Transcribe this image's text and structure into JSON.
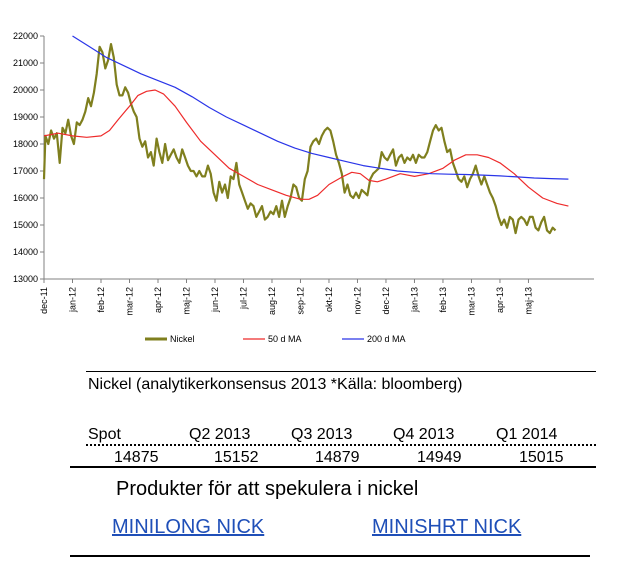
{
  "chart_data": {
    "type": "line",
    "ylim": [
      13000,
      22000
    ],
    "yticks": [
      13000,
      14000,
      15000,
      16000,
      17000,
      18000,
      19000,
      20000,
      21000,
      22000
    ],
    "xticks": [
      "dec-11",
      "jan-12",
      "feb-12",
      "mar-12",
      "apr-12",
      "maj-12",
      "jun-12",
      "jul-12",
      "aug-12",
      "sep-12",
      "okt-12",
      "nov-12",
      "dec-12",
      "jan-13",
      "feb-13",
      "mar-13",
      "apr-13",
      "maj-13"
    ],
    "x_range": [
      0,
      19.3
    ],
    "grid": false,
    "legend_position": "bottom",
    "series": [
      {
        "name": "Nickel",
        "color": "#7f7f1e",
        "points": [
          [
            0.0,
            16700
          ],
          [
            0.05,
            18300
          ],
          [
            0.15,
            18000
          ],
          [
            0.25,
            18500
          ],
          [
            0.35,
            18200
          ],
          [
            0.45,
            18400
          ],
          [
            0.55,
            17300
          ],
          [
            0.65,
            18600
          ],
          [
            0.75,
            18400
          ],
          [
            0.85,
            18900
          ],
          [
            0.95,
            18300
          ],
          [
            1.05,
            18000
          ],
          [
            1.15,
            18800
          ],
          [
            1.25,
            18700
          ],
          [
            1.35,
            18900
          ],
          [
            1.45,
            19200
          ],
          [
            1.55,
            19700
          ],
          [
            1.65,
            19400
          ],
          [
            1.75,
            19900
          ],
          [
            1.85,
            20600
          ],
          [
            1.95,
            21600
          ],
          [
            2.05,
            21400
          ],
          [
            2.15,
            20800
          ],
          [
            2.25,
            21100
          ],
          [
            2.35,
            21700
          ],
          [
            2.45,
            21200
          ],
          [
            2.55,
            20200
          ],
          [
            2.65,
            19800
          ],
          [
            2.75,
            19800
          ],
          [
            2.85,
            20100
          ],
          [
            2.95,
            19900
          ],
          [
            3.05,
            19500
          ],
          [
            3.15,
            19200
          ],
          [
            3.25,
            19000
          ],
          [
            3.35,
            18200
          ],
          [
            3.45,
            17900
          ],
          [
            3.55,
            18100
          ],
          [
            3.65,
            17500
          ],
          [
            3.75,
            17700
          ],
          [
            3.85,
            17200
          ],
          [
            3.95,
            18200
          ],
          [
            4.05,
            17700
          ],
          [
            4.15,
            17300
          ],
          [
            4.25,
            18000
          ],
          [
            4.35,
            17400
          ],
          [
            4.45,
            17600
          ],
          [
            4.55,
            17800
          ],
          [
            4.65,
            17500
          ],
          [
            4.75,
            17300
          ],
          [
            4.85,
            17800
          ],
          [
            4.95,
            17500
          ],
          [
            5.05,
            17200
          ],
          [
            5.15,
            17000
          ],
          [
            5.25,
            17000
          ],
          [
            5.35,
            16800
          ],
          [
            5.45,
            17000
          ],
          [
            5.55,
            16800
          ],
          [
            5.65,
            16800
          ],
          [
            5.75,
            17200
          ],
          [
            5.85,
            16900
          ],
          [
            5.95,
            16200
          ],
          [
            6.05,
            15900
          ],
          [
            6.15,
            16600
          ],
          [
            6.25,
            16200
          ],
          [
            6.35,
            16500
          ],
          [
            6.45,
            16000
          ],
          [
            6.55,
            16800
          ],
          [
            6.65,
            16700
          ],
          [
            6.75,
            17300
          ],
          [
            6.85,
            16500
          ],
          [
            6.95,
            16200
          ],
          [
            7.05,
            15900
          ],
          [
            7.15,
            15600
          ],
          [
            7.25,
            15800
          ],
          [
            7.35,
            15700
          ],
          [
            7.45,
            15300
          ],
          [
            7.55,
            15500
          ],
          [
            7.65,
            15700
          ],
          [
            7.75,
            15200
          ],
          [
            7.85,
            15300
          ],
          [
            7.95,
            15500
          ],
          [
            8.05,
            15400
          ],
          [
            8.15,
            15700
          ],
          [
            8.25,
            15300
          ],
          [
            8.35,
            15900
          ],
          [
            8.45,
            15300
          ],
          [
            8.55,
            15700
          ],
          [
            8.65,
            16000
          ],
          [
            8.75,
            16500
          ],
          [
            8.85,
            16400
          ],
          [
            8.95,
            16000
          ],
          [
            9.05,
            15900
          ],
          [
            9.15,
            16700
          ],
          [
            9.25,
            17000
          ],
          [
            9.35,
            17900
          ],
          [
            9.45,
            18100
          ],
          [
            9.55,
            18200
          ],
          [
            9.65,
            18000
          ],
          [
            9.75,
            18300
          ],
          [
            9.85,
            18500
          ],
          [
            9.95,
            18600
          ],
          [
            10.05,
            18500
          ],
          [
            10.15,
            18100
          ],
          [
            10.25,
            17600
          ],
          [
            10.35,
            17300
          ],
          [
            10.45,
            16900
          ],
          [
            10.55,
            16200
          ],
          [
            10.65,
            16500
          ],
          [
            10.75,
            16100
          ],
          [
            10.85,
            16000
          ],
          [
            10.95,
            16200
          ],
          [
            11.05,
            16000
          ],
          [
            11.15,
            16300
          ],
          [
            11.25,
            16200
          ],
          [
            11.35,
            16100
          ],
          [
            11.45,
            16700
          ],
          [
            11.55,
            16900
          ],
          [
            11.65,
            17000
          ],
          [
            11.75,
            17100
          ],
          [
            11.85,
            17700
          ],
          [
            11.95,
            17500
          ],
          [
            12.05,
            17400
          ],
          [
            12.15,
            17600
          ],
          [
            12.25,
            17800
          ],
          [
            12.35,
            17200
          ],
          [
            12.45,
            17500
          ],
          [
            12.55,
            17600
          ],
          [
            12.65,
            17300
          ],
          [
            12.75,
            17500
          ],
          [
            12.85,
            17400
          ],
          [
            12.95,
            17600
          ],
          [
            13.05,
            17300
          ],
          [
            13.15,
            17600
          ],
          [
            13.25,
            17500
          ],
          [
            13.35,
            17500
          ],
          [
            13.45,
            17700
          ],
          [
            13.55,
            18100
          ],
          [
            13.65,
            18500
          ],
          [
            13.75,
            18700
          ],
          [
            13.85,
            18500
          ],
          [
            13.95,
            18600
          ],
          [
            14.05,
            18100
          ],
          [
            14.15,
            17700
          ],
          [
            14.25,
            17800
          ],
          [
            14.35,
            17300
          ],
          [
            14.45,
            17000
          ],
          [
            14.55,
            16700
          ],
          [
            14.65,
            16600
          ],
          [
            14.75,
            16800
          ],
          [
            14.85,
            16400
          ],
          [
            14.95,
            16700
          ],
          [
            15.05,
            16900
          ],
          [
            15.15,
            17200
          ],
          [
            15.25,
            16800
          ],
          [
            15.35,
            16500
          ],
          [
            15.45,
            16800
          ],
          [
            15.55,
            16500
          ],
          [
            15.65,
            16200
          ],
          [
            15.75,
            16000
          ],
          [
            15.85,
            15700
          ],
          [
            15.95,
            15300
          ],
          [
            16.05,
            15000
          ],
          [
            16.15,
            15200
          ],
          [
            16.25,
            14900
          ],
          [
            16.35,
            15300
          ],
          [
            16.45,
            15200
          ],
          [
            16.55,
            14700
          ],
          [
            16.65,
            15200
          ],
          [
            16.75,
            15300
          ],
          [
            16.85,
            15200
          ],
          [
            16.95,
            15000
          ],
          [
            17.05,
            15300
          ],
          [
            17.15,
            15300
          ],
          [
            17.25,
            14900
          ],
          [
            17.35,
            14800
          ],
          [
            17.45,
            15100
          ],
          [
            17.55,
            15300
          ],
          [
            17.65,
            14800
          ],
          [
            17.75,
            14700
          ],
          [
            17.85,
            14900
          ],
          [
            17.95,
            14800
          ]
        ]
      },
      {
        "name": "50 d MA",
        "color": "#ee2b2b",
        "points": [
          [
            0.0,
            18300
          ],
          [
            0.5,
            18400
          ],
          [
            1.0,
            18300
          ],
          [
            1.5,
            18250
          ],
          [
            2.0,
            18300
          ],
          [
            2.3,
            18500
          ],
          [
            2.6,
            18900
          ],
          [
            3.0,
            19400
          ],
          [
            3.3,
            19800
          ],
          [
            3.6,
            19950
          ],
          [
            3.9,
            20000
          ],
          [
            4.2,
            19850
          ],
          [
            4.6,
            19400
          ],
          [
            5.0,
            18800
          ],
          [
            5.5,
            18100
          ],
          [
            6.0,
            17600
          ],
          [
            6.5,
            17100
          ],
          [
            7.0,
            16800
          ],
          [
            7.5,
            16500
          ],
          [
            8.0,
            16300
          ],
          [
            8.5,
            16100
          ],
          [
            9.0,
            15950
          ],
          [
            9.3,
            15950
          ],
          [
            9.6,
            16100
          ],
          [
            10.0,
            16500
          ],
          [
            10.5,
            16800
          ],
          [
            10.8,
            16950
          ],
          [
            11.1,
            16900
          ],
          [
            11.4,
            16650
          ],
          [
            11.7,
            16600
          ],
          [
            12.0,
            16700
          ],
          [
            12.5,
            16900
          ],
          [
            13.0,
            16800
          ],
          [
            13.5,
            16900
          ],
          [
            14.0,
            17100
          ],
          [
            14.4,
            17400
          ],
          [
            14.8,
            17600
          ],
          [
            15.2,
            17600
          ],
          [
            15.6,
            17500
          ],
          [
            16.0,
            17300
          ],
          [
            16.5,
            16900
          ],
          [
            17.0,
            16400
          ],
          [
            17.5,
            16000
          ],
          [
            18.0,
            15800
          ],
          [
            18.4,
            15700
          ]
        ]
      },
      {
        "name": "200 d MA",
        "color": "#2a35e8",
        "points": [
          [
            1.0,
            22000
          ],
          [
            1.6,
            21600
          ],
          [
            2.2,
            21200
          ],
          [
            2.8,
            20900
          ],
          [
            3.4,
            20600
          ],
          [
            4.0,
            20350
          ],
          [
            4.6,
            20100
          ],
          [
            5.2,
            19750
          ],
          [
            5.8,
            19350
          ],
          [
            6.4,
            19000
          ],
          [
            7.0,
            18700
          ],
          [
            7.6,
            18400
          ],
          [
            8.2,
            18100
          ],
          [
            8.8,
            17850
          ],
          [
            9.4,
            17650
          ],
          [
            10.0,
            17500
          ],
          [
            10.6,
            17350
          ],
          [
            11.2,
            17200
          ],
          [
            11.8,
            17100
          ],
          [
            12.4,
            17000
          ],
          [
            13.0,
            16950
          ],
          [
            13.6,
            16900
          ],
          [
            14.2,
            16880
          ],
          [
            14.8,
            16870
          ],
          [
            15.4,
            16850
          ],
          [
            16.0,
            16820
          ],
          [
            16.6,
            16780
          ],
          [
            17.2,
            16740
          ],
          [
            17.8,
            16720
          ],
          [
            18.4,
            16700
          ]
        ]
      }
    ]
  },
  "table": {
    "title": "Nickel (analytikerkonsensus 2013 *Källa: bloomberg)",
    "headers": [
      "Spot",
      "Q2 2013",
      "Q3 2013",
      "Q4 2013",
      "Q1 2014"
    ],
    "values": [
      "14875",
      "15152",
      "14879",
      "14949",
      "15015"
    ]
  },
  "products_text": "Produkter för att spekulera i nickel",
  "links": {
    "minilong": "MINILONG NICK",
    "minishrt": "MINISHRT NICK"
  }
}
